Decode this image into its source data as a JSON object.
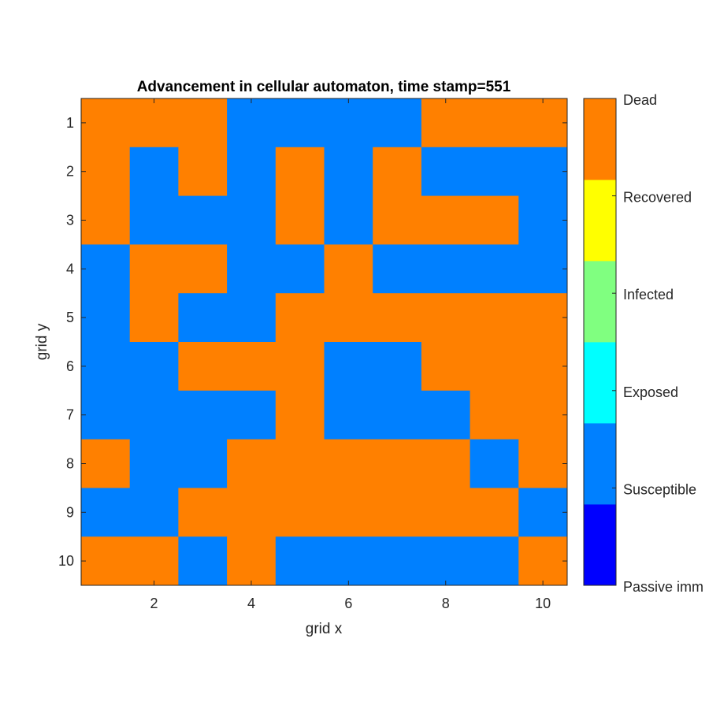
{
  "chart_data": {
    "type": "heatmap",
    "title": "Advancement in cellular automaton, time stamp=551",
    "xlabel": "grid x",
    "ylabel": "grid y",
    "xlim": [
      0.5,
      10.5
    ],
    "ylim": [
      0.5,
      10.5
    ],
    "y_reversed": true,
    "xticks": [
      2,
      4,
      6,
      8,
      10
    ],
    "yticks": [
      1,
      2,
      3,
      4,
      5,
      6,
      7,
      8,
      9,
      10
    ],
    "states": [
      {
        "name": "Passive imm",
        "color": "#0000ff"
      },
      {
        "name": "Susceptible",
        "color": "#0080ff"
      },
      {
        "name": "Exposed",
        "color": "#00ffff"
      },
      {
        "name": "Infected",
        "color": "#80ff80"
      },
      {
        "name": "Recovered",
        "color": "#ffff00"
      },
      {
        "name": "Dead",
        "color": "#ff8000"
      }
    ],
    "colorbar_labels": [
      "Dead",
      "Recovered",
      "Infected",
      "Exposed",
      "Susceptible",
      "Passive imm"
    ],
    "grid": [
      [
        "Dead",
        "Dead",
        "Dead",
        "Susceptible",
        "Susceptible",
        "Susceptible",
        "Susceptible",
        "Dead",
        "Dead",
        "Dead"
      ],
      [
        "Dead",
        "Susceptible",
        "Dead",
        "Susceptible",
        "Dead",
        "Susceptible",
        "Dead",
        "Susceptible",
        "Susceptible",
        "Susceptible"
      ],
      [
        "Dead",
        "Susceptible",
        "Susceptible",
        "Susceptible",
        "Dead",
        "Susceptible",
        "Dead",
        "Dead",
        "Dead",
        "Susceptible"
      ],
      [
        "Susceptible",
        "Dead",
        "Dead",
        "Susceptible",
        "Susceptible",
        "Dead",
        "Susceptible",
        "Susceptible",
        "Susceptible",
        "Susceptible"
      ],
      [
        "Susceptible",
        "Dead",
        "Susceptible",
        "Susceptible",
        "Dead",
        "Dead",
        "Dead",
        "Dead",
        "Dead",
        "Dead"
      ],
      [
        "Susceptible",
        "Susceptible",
        "Dead",
        "Dead",
        "Dead",
        "Susceptible",
        "Susceptible",
        "Dead",
        "Dead",
        "Dead"
      ],
      [
        "Susceptible",
        "Susceptible",
        "Susceptible",
        "Susceptible",
        "Dead",
        "Susceptible",
        "Susceptible",
        "Susceptible",
        "Dead",
        "Dead"
      ],
      [
        "Dead",
        "Susceptible",
        "Susceptible",
        "Dead",
        "Dead",
        "Dead",
        "Dead",
        "Dead",
        "Susceptible",
        "Dead"
      ],
      [
        "Susceptible",
        "Susceptible",
        "Dead",
        "Dead",
        "Dead",
        "Dead",
        "Dead",
        "Dead",
        "Dead",
        "Susceptible"
      ],
      [
        "Dead",
        "Dead",
        "Susceptible",
        "Dead",
        "Susceptible",
        "Susceptible",
        "Susceptible",
        "Susceptible",
        "Susceptible",
        "Dead"
      ]
    ]
  }
}
